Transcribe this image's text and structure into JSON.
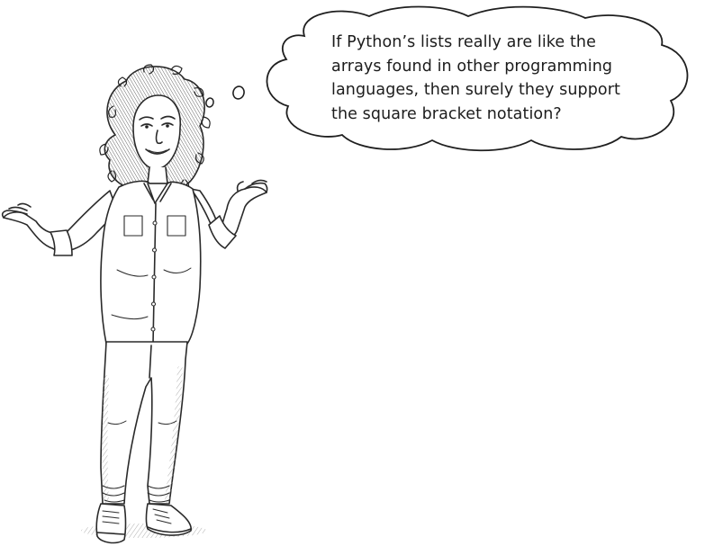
{
  "thought_bubble": {
    "lines": [
      "If Python’s lists really are like the",
      "arrays found in other programming",
      "languages, then surely they support",
      "the square bracket notation?"
    ]
  },
  "illustration": {
    "subject": "woman-shrugging",
    "line_color": "#2a2a2a"
  }
}
